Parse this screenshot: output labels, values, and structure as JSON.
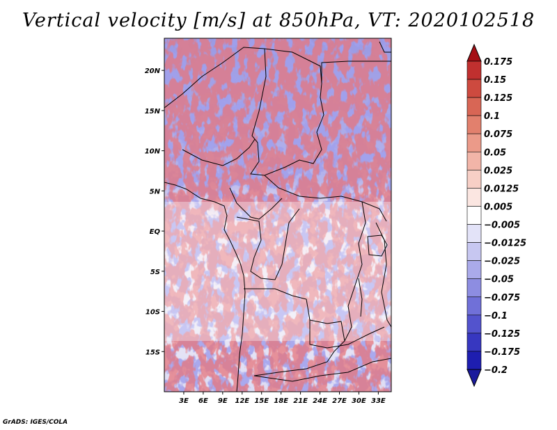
{
  "title": "Vertical velocity [m/s] at 850hPa, VT: 2020102518",
  "footer": "GrADS: IGES/COLA",
  "map": {
    "lat_range": [
      -20,
      24
    ],
    "lon_range": [
      0,
      35
    ],
    "y_ticks": [
      {
        "label": "20N",
        "lat": 20
      },
      {
        "label": "15N",
        "lat": 15
      },
      {
        "label": "10N",
        "lat": 10
      },
      {
        "label": "5N",
        "lat": 5
      },
      {
        "label": "EQ",
        "lat": 0
      },
      {
        "label": "5S",
        "lat": -5
      },
      {
        "label": "10S",
        "lat": -10
      },
      {
        "label": "15S",
        "lat": -15
      }
    ],
    "x_ticks": [
      {
        "label": "3E",
        "lon": 3
      },
      {
        "label": "6E",
        "lon": 6
      },
      {
        "label": "9E",
        "lon": 9
      },
      {
        "label": "12E",
        "lon": 12
      },
      {
        "label": "15E",
        "lon": 15
      },
      {
        "label": "18E",
        "lon": 18
      },
      {
        "label": "21E",
        "lon": 21
      },
      {
        "label": "24E",
        "lon": 24
      },
      {
        "label": "27E",
        "lon": 27
      },
      {
        "label": "30E",
        "lon": 30
      },
      {
        "label": "33E",
        "lon": 33
      }
    ]
  },
  "colorbar": {
    "levels": [
      {
        "label": "0.175",
        "color": "#b2182b"
      },
      {
        "label": "0.15",
        "color": "#c0302f"
      },
      {
        "label": "0.125",
        "color": "#cd4a3f"
      },
      {
        "label": "0.1",
        "color": "#d86655"
      },
      {
        "label": "0.075",
        "color": "#e2806d"
      },
      {
        "label": "0.05",
        "color": "#eb9a89"
      },
      {
        "label": "0.025",
        "color": "#f2b5a8"
      },
      {
        "label": "0.0125",
        "color": "#f7cfc6"
      },
      {
        "label": "0.005",
        "color": "#fbe6e1"
      },
      {
        "label": "−0.005",
        "color": "#ffffff"
      },
      {
        "label": "−0.0125",
        "color": "#e3e3f8"
      },
      {
        "label": "−0.025",
        "color": "#c7c7f1"
      },
      {
        "label": "−0.05",
        "color": "#aaaaea"
      },
      {
        "label": "−0.075",
        "color": "#8d8de1"
      },
      {
        "label": "−0.1",
        "color": "#7070d8"
      },
      {
        "label": "−0.125",
        "color": "#5353cd"
      },
      {
        "label": "−0.175",
        "color": "#3737c0"
      },
      {
        "label": "−0.2",
        "color": "#1e1eb0"
      }
    ],
    "top_color": "#a50f15",
    "bottom_color": "#1a1a9c"
  }
}
